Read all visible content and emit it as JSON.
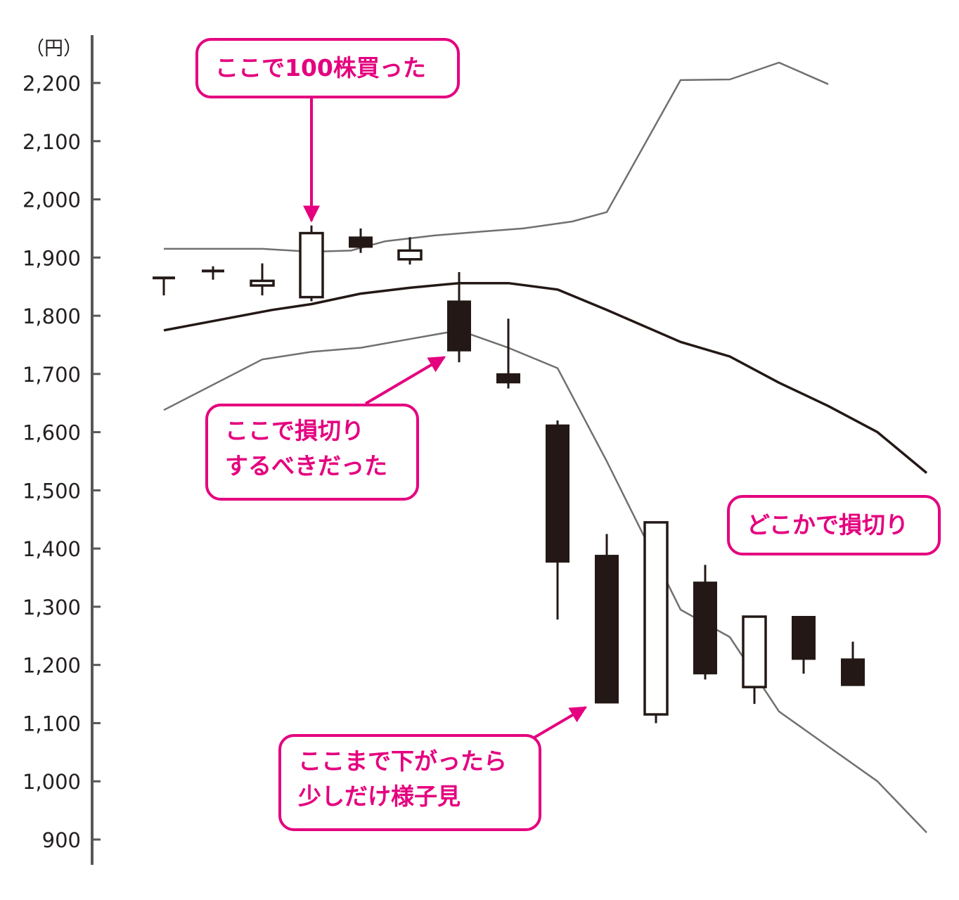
{
  "chart_data": {
    "type": "candlestick",
    "ylabel": "（円）",
    "ylim": [
      900,
      2200
    ],
    "y_ticks": [
      "2,200",
      "2,100",
      "2,000",
      "1,900",
      "1,800",
      "1,700",
      "1,600",
      "1,500",
      "1,400",
      "1,300",
      "1,200",
      "1,100",
      "1,000",
      "900"
    ],
    "y_tick_values": [
      2200,
      2100,
      2000,
      1900,
      1800,
      1700,
      1600,
      1500,
      1400,
      1300,
      1200,
      1100,
      1000,
      900
    ],
    "candles": [
      {
        "open": 1865,
        "high": 1865,
        "low": 1835,
        "close": 1865
      },
      {
        "open": 1877,
        "high": 1885,
        "low": 1862,
        "close": 1877
      },
      {
        "open": 1852,
        "high": 1890,
        "low": 1835,
        "close": 1860
      },
      {
        "open": 1832,
        "high": 1955,
        "low": 1825,
        "close": 1942
      },
      {
        "open": 1935,
        "high": 1950,
        "low": 1908,
        "close": 1918
      },
      {
        "open": 1897,
        "high": 1935,
        "low": 1888,
        "close": 1912
      },
      {
        "open": 1825,
        "high": 1875,
        "low": 1720,
        "close": 1740
      },
      {
        "open": 1700,
        "high": 1795,
        "low": 1675,
        "close": 1685
      },
      {
        "open": 1612,
        "high": 1620,
        "low": 1278,
        "close": 1377
      },
      {
        "open": 1388,
        "high": 1425,
        "low": 1135,
        "close": 1135
      },
      {
        "open": 1115,
        "high": 1445,
        "low": 1100,
        "close": 1445
      },
      {
        "open": 1342,
        "high": 1372,
        "low": 1175,
        "close": 1185
      },
      {
        "open": 1162,
        "high": 1283,
        "low": 1133,
        "close": 1283
      },
      {
        "open": 1283,
        "high": 1283,
        "low": 1185,
        "close": 1210
      },
      {
        "open": 1210,
        "high": 1240,
        "low": 1165,
        "close": 1165
      }
    ],
    "lines": [
      {
        "role": "moving-average",
        "color": "#231815",
        "points": [
          [
            0,
            1775
          ],
          [
            2.2,
            1810
          ],
          [
            3,
            1820
          ],
          [
            4,
            1838
          ],
          [
            5,
            1848
          ],
          [
            6,
            1856
          ],
          [
            7,
            1856
          ],
          [
            8,
            1845
          ],
          [
            9,
            1810
          ],
          [
            10.5,
            1755
          ],
          [
            11.5,
            1730
          ],
          [
            12.5,
            1685
          ],
          [
            13.5,
            1645
          ],
          [
            14.5,
            1600
          ],
          [
            15.5,
            1530
          ]
        ]
      },
      {
        "role": "upper-band",
        "color": "#707070",
        "points": [
          [
            0,
            1915
          ],
          [
            2,
            1915
          ],
          [
            3,
            1910
          ],
          [
            3.8,
            1912
          ],
          [
            4.5,
            1928
          ],
          [
            5.5,
            1938
          ],
          [
            6.5,
            1945
          ],
          [
            7.3,
            1950
          ],
          [
            8.3,
            1962
          ],
          [
            9,
            1978
          ],
          [
            10.5,
            2205
          ],
          [
            11.5,
            2206
          ],
          [
            12.5,
            2235
          ],
          [
            13.5,
            2198
          ]
        ]
      },
      {
        "role": "lower-band",
        "color": "#707070",
        "points": [
          [
            0,
            1638
          ],
          [
            2,
            1725
          ],
          [
            3,
            1738
          ],
          [
            4,
            1745
          ],
          [
            5,
            1760
          ],
          [
            6,
            1775
          ],
          [
            7,
            1745
          ],
          [
            8,
            1710
          ],
          [
            9,
            1550
          ],
          [
            10.5,
            1295
          ],
          [
            11.5,
            1248
          ],
          [
            12.5,
            1120
          ],
          [
            13.5,
            1060
          ],
          [
            14.5,
            1000
          ],
          [
            15.5,
            912
          ]
        ]
      }
    ],
    "annotations": [
      {
        "text": "ここで100株買った",
        "target_candle": 3
      },
      {
        "text": "ここで損切りするべきだった",
        "target_candle": 6
      },
      {
        "text": "ここまで下がったら少しだけ様子見",
        "target_candle": 9
      },
      {
        "text": "どこかで損切り"
      }
    ]
  },
  "callouts": {
    "buy": "ここで100株買った",
    "stop_line1": "ここで損切り",
    "stop_line2": "するべきだった",
    "wait_line1": "ここまで下がったら",
    "wait_line2": "少しだけ様子見",
    "somewhere": "どこかで損切り"
  },
  "colors": {
    "accent": "#e4007f",
    "candle": "#231815",
    "axis": "#595757",
    "ma": "#231815",
    "band": "#707070"
  }
}
